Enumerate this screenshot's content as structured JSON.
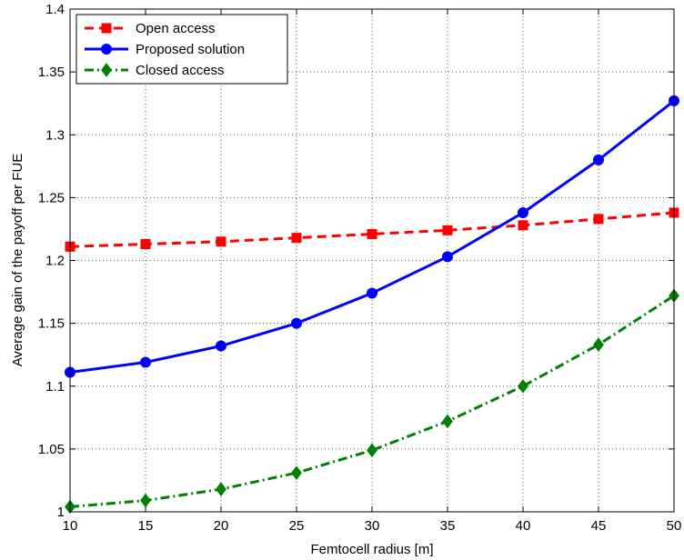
{
  "chart_data": {
    "type": "line",
    "title": "",
    "xlabel": "Femtocell radius [m]",
    "ylabel": "Average gain of the payoff per FUE",
    "xlim": [
      10,
      50
    ],
    "ylim": [
      1,
      1.4
    ],
    "x_ticks": [
      "10",
      "15",
      "20",
      "25",
      "30",
      "35",
      "40",
      "45",
      "50"
    ],
    "y_ticks": [
      "1",
      "1.05",
      "1.1",
      "1.15",
      "1.2",
      "1.25",
      "1.3",
      "1.35",
      "1.4"
    ],
    "grid": true,
    "legend_position": "top-left",
    "x": [
      10,
      15,
      20,
      25,
      30,
      35,
      40,
      45,
      50
    ],
    "series": [
      {
        "name": "Open access",
        "color": "#ff0000",
        "line_style": "dashed",
        "marker": "square",
        "values": [
          1.211,
          1.213,
          1.215,
          1.218,
          1.221,
          1.224,
          1.228,
          1.233,
          1.238
        ]
      },
      {
        "name": "Proposed solution",
        "color": "#0000ff",
        "line_style": "solid",
        "marker": "circle",
        "values": [
          1.111,
          1.119,
          1.132,
          1.15,
          1.174,
          1.203,
          1.238,
          1.28,
          1.327
        ]
      },
      {
        "name": "Closed access",
        "color": "#008000",
        "line_style": "dash-dot",
        "marker": "diamond",
        "values": [
          1.004,
          1.009,
          1.018,
          1.031,
          1.049,
          1.072,
          1.1,
          1.133,
          1.172
        ]
      }
    ]
  }
}
